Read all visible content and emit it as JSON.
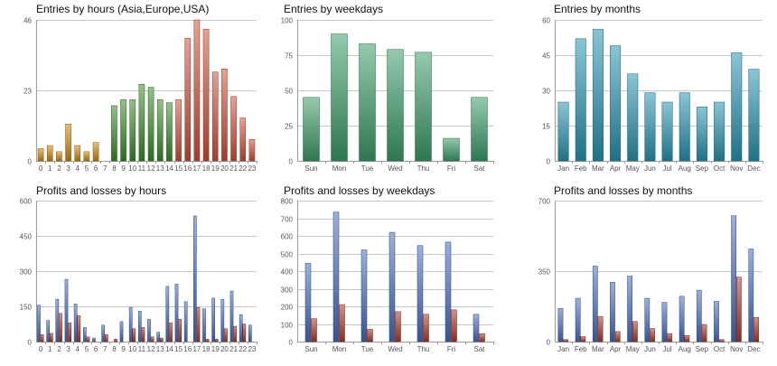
{
  "colors": {
    "hours_asia": "#d18a12",
    "hours_europe": "#3a8f2a",
    "hours_usa": "#d2533c",
    "weekdays": "#3d9e6a",
    "months": "#2a96b2",
    "profit": "#4a6fc0",
    "loss": "#b33a26",
    "grid": "#c8c8c8"
  },
  "chart_data": [
    {
      "id": "entries-hours",
      "type": "bar",
      "title": "Entries by hours (Asia,Europe,USA)",
      "categories": [
        "0",
        "1",
        "2",
        "3",
        "4",
        "5",
        "6",
        "7",
        "8",
        "9",
        "10",
        "11",
        "12",
        "13",
        "14",
        "15",
        "16",
        "17",
        "18",
        "19",
        "20",
        "21",
        "22",
        "23"
      ],
      "values": [
        4,
        5,
        3,
        12,
        5,
        3,
        6,
        0,
        18,
        20,
        20,
        25,
        24,
        20,
        19,
        20,
        40,
        46,
        43,
        29,
        30,
        21,
        14,
        7
      ],
      "bar_colors": [
        "hours_asia",
        "hours_asia",
        "hours_asia",
        "hours_asia",
        "hours_asia",
        "hours_asia",
        "hours_asia",
        "hours_asia",
        "hours_europe",
        "hours_europe",
        "hours_europe",
        "hours_europe",
        "hours_europe",
        "hours_europe",
        "hours_europe",
        "hours_usa",
        "hours_usa",
        "hours_usa",
        "hours_usa",
        "hours_usa",
        "hours_usa",
        "hours_usa",
        "hours_usa",
        "hours_usa"
      ],
      "ylim": [
        0,
        46
      ],
      "yticks": [
        0,
        23,
        46
      ]
    },
    {
      "id": "entries-weekdays",
      "type": "bar",
      "title": "Entries by weekdays",
      "categories": [
        "Sun",
        "Mon",
        "Tue",
        "Wed",
        "Thu",
        "Fri",
        "Sat"
      ],
      "values": [
        45,
        90,
        83,
        79,
        77,
        16,
        45
      ],
      "color": "weekdays",
      "ylim": [
        0,
        100
      ],
      "yticks": [
        0,
        25,
        50,
        75,
        100
      ]
    },
    {
      "id": "entries-months",
      "type": "bar",
      "title": "Entries by months",
      "categories": [
        "Jan",
        "Feb",
        "Mar",
        "Apr",
        "May",
        "Jun",
        "Jul",
        "Aug",
        "Sep",
        "Oct",
        "Nov",
        "Dec"
      ],
      "values": [
        25,
        52,
        56,
        49,
        37,
        29,
        25,
        29,
        23,
        25,
        46,
        39
      ],
      "color": "months",
      "ylim": [
        0,
        60
      ],
      "yticks": [
        0,
        15,
        30,
        45,
        60
      ]
    },
    {
      "id": "pl-hours",
      "type": "bar",
      "title": "Profits and losses by hours",
      "categories": [
        "0",
        "1",
        "2",
        "3",
        "4",
        "5",
        "6",
        "7",
        "8",
        "9",
        "10",
        "11",
        "12",
        "13",
        "14",
        "15",
        "16",
        "17",
        "18",
        "19",
        "20",
        "21",
        "22",
        "23"
      ],
      "series": [
        {
          "values": [
            155,
            90,
            180,
            265,
            160,
            60,
            15,
            70,
            0,
            85,
            145,
            130,
            95,
            40,
            235,
            245,
            170,
            535,
            140,
            185,
            180,
            215,
            115,
            70
          ],
          "color": "profit"
        },
        {
          "values": [
            30,
            35,
            120,
            80,
            110,
            20,
            0,
            30,
            10,
            0,
            55,
            60,
            20,
            15,
            80,
            95,
            0,
            145,
            10,
            10,
            55,
            65,
            75,
            0
          ],
          "color": "loss"
        }
      ],
      "ylim": [
        0,
        600
      ],
      "yticks": [
        0,
        150,
        300,
        450,
        600
      ]
    },
    {
      "id": "pl-weekdays",
      "type": "bar",
      "title": "Profits and losses by weekdays",
      "categories": [
        "Sun",
        "Mon",
        "Tue",
        "Wed",
        "Thu",
        "Fri",
        "Sat"
      ],
      "series": [
        {
          "values": [
            445,
            735,
            520,
            620,
            545,
            565,
            155
          ],
          "color": "profit"
        },
        {
          "values": [
            130,
            210,
            70,
            170,
            155,
            180,
            45
          ],
          "color": "loss"
        }
      ],
      "ylim": [
        0,
        800
      ],
      "yticks": [
        0,
        100,
        200,
        300,
        400,
        500,
        600,
        700,
        800
      ]
    },
    {
      "id": "pl-months",
      "type": "bar",
      "title": "Profits and losses by months",
      "categories": [
        "Jan",
        "Feb",
        "Mar",
        "Apr",
        "May",
        "Jun",
        "Jul",
        "Aug",
        "Sep",
        "Oct",
        "Nov",
        "Dec"
      ],
      "series": [
        {
          "values": [
            165,
            215,
            375,
            295,
            325,
            215,
            195,
            225,
            255,
            200,
            625,
            460
          ],
          "color": "profit"
        },
        {
          "values": [
            10,
            25,
            125,
            50,
            100,
            65,
            40,
            30,
            85,
            10,
            320,
            120
          ],
          "color": "loss"
        }
      ],
      "ylim": [
        0,
        700
      ],
      "yticks": [
        0,
        350,
        700
      ]
    }
  ]
}
